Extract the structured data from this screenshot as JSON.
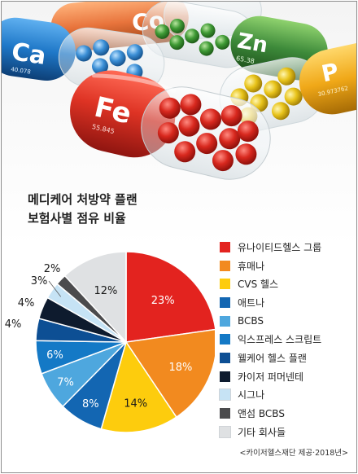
{
  "title_lines": [
    "메디케어 처방약 플랜",
    "보험사별 점유 비율"
  ],
  "source": "<카이저헬스재단 제공·2018년>",
  "hero": {
    "capsules": [
      {
        "element": "Ca",
        "number": "40.078",
        "color": "#1f78c8"
      },
      {
        "element": "Co",
        "number": "",
        "color": "#e8743c"
      },
      {
        "element": "Zn",
        "number": "65.38",
        "color": "#3d8a3a"
      },
      {
        "element": "P",
        "number": "30.973762",
        "color": "#f0a818"
      },
      {
        "element": "Fe",
        "number": "55.845",
        "color": "#d8322a"
      }
    ]
  },
  "chart_data": {
    "type": "pie",
    "title": "",
    "start_angle_deg": 0,
    "direction": "clockwise",
    "slices": [
      {
        "label": "유나이티드헬스 그룹",
        "value": 23,
        "display": "23%",
        "color": "#e3231f"
      },
      {
        "label": "휴매나",
        "value": 18,
        "display": "18%",
        "color": "#f28a1f"
      },
      {
        "label": "CVS 헬스",
        "value": 14,
        "display": "14%",
        "color": "#fdcc0d"
      },
      {
        "label": "애트나",
        "value": 8,
        "display": "8%",
        "color": "#1366b2"
      },
      {
        "label": "BCBS",
        "value": 7,
        "display": "7%",
        "color": "#4ea7de"
      },
      {
        "label": "익스프레스 스크립트",
        "value": 6,
        "display": "6%",
        "color": "#1479c6"
      },
      {
        "label": "웰케어 헬스 플랜",
        "value": 4,
        "display": "4%",
        "color": "#0d4f94"
      },
      {
        "label": "카이저 퍼머넨테",
        "value": 4,
        "display": "4%",
        "color": "#0e1b2e"
      },
      {
        "label": "시그나",
        "value": 3,
        "display": "3%",
        "color": "#c6e3f5"
      },
      {
        "label": "앤섬 BCBS",
        "value": 2,
        "display": "2%",
        "color": "#4b4b4d"
      },
      {
        "label": "기타 회사들",
        "value": 12,
        "display": "12%",
        "color": "#dfe1e3"
      }
    ],
    "legend_position": "right"
  }
}
